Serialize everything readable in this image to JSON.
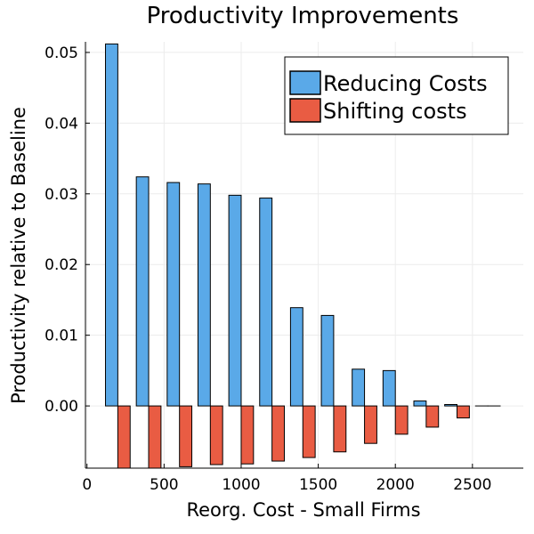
{
  "chart_data": {
    "type": "bar",
    "title": "Productivity Improvements",
    "xlabel": "Reorg. Cost - Small Firms",
    "ylabel": "Productivity relative to Baseline",
    "xlim": [
      -10,
      2830
    ],
    "ylim": [
      -0.0088,
      0.0515
    ],
    "xticks": [
      0,
      500,
      1000,
      1500,
      2000,
      2500
    ],
    "xtick_labels": [
      "0",
      "500",
      "1000",
      "1500",
      "2000",
      "2500"
    ],
    "yticks": [
      0.0,
      0.01,
      0.02,
      0.03,
      0.04,
      0.05
    ],
    "ytick_labels": [
      "0.00",
      "0.01",
      "0.02",
      "0.03",
      "0.04",
      "0.05"
    ],
    "grid": true,
    "legend_position": "top-right",
    "x": [
      200,
      400,
      600,
      800,
      1000,
      1200,
      1400,
      1600,
      1800,
      2000,
      2200,
      2400,
      2600
    ],
    "series": [
      {
        "name": "Reducing Costs",
        "color": "#5aa9e8",
        "values": [
          0.0512,
          0.0324,
          0.0316,
          0.0314,
          0.0298,
          0.0294,
          0.0139,
          0.0128,
          0.0052,
          0.005,
          0.0007,
          0.0002,
          0.0
        ]
      },
      {
        "name": "Shifting costs",
        "color": "#e95c43",
        "values": [
          -0.0095,
          -0.0092,
          -0.0086,
          -0.0083,
          -0.0082,
          -0.0078,
          -0.0073,
          -0.0065,
          -0.0053,
          -0.004,
          -0.003,
          -0.0017,
          0.0
        ]
      }
    ]
  }
}
